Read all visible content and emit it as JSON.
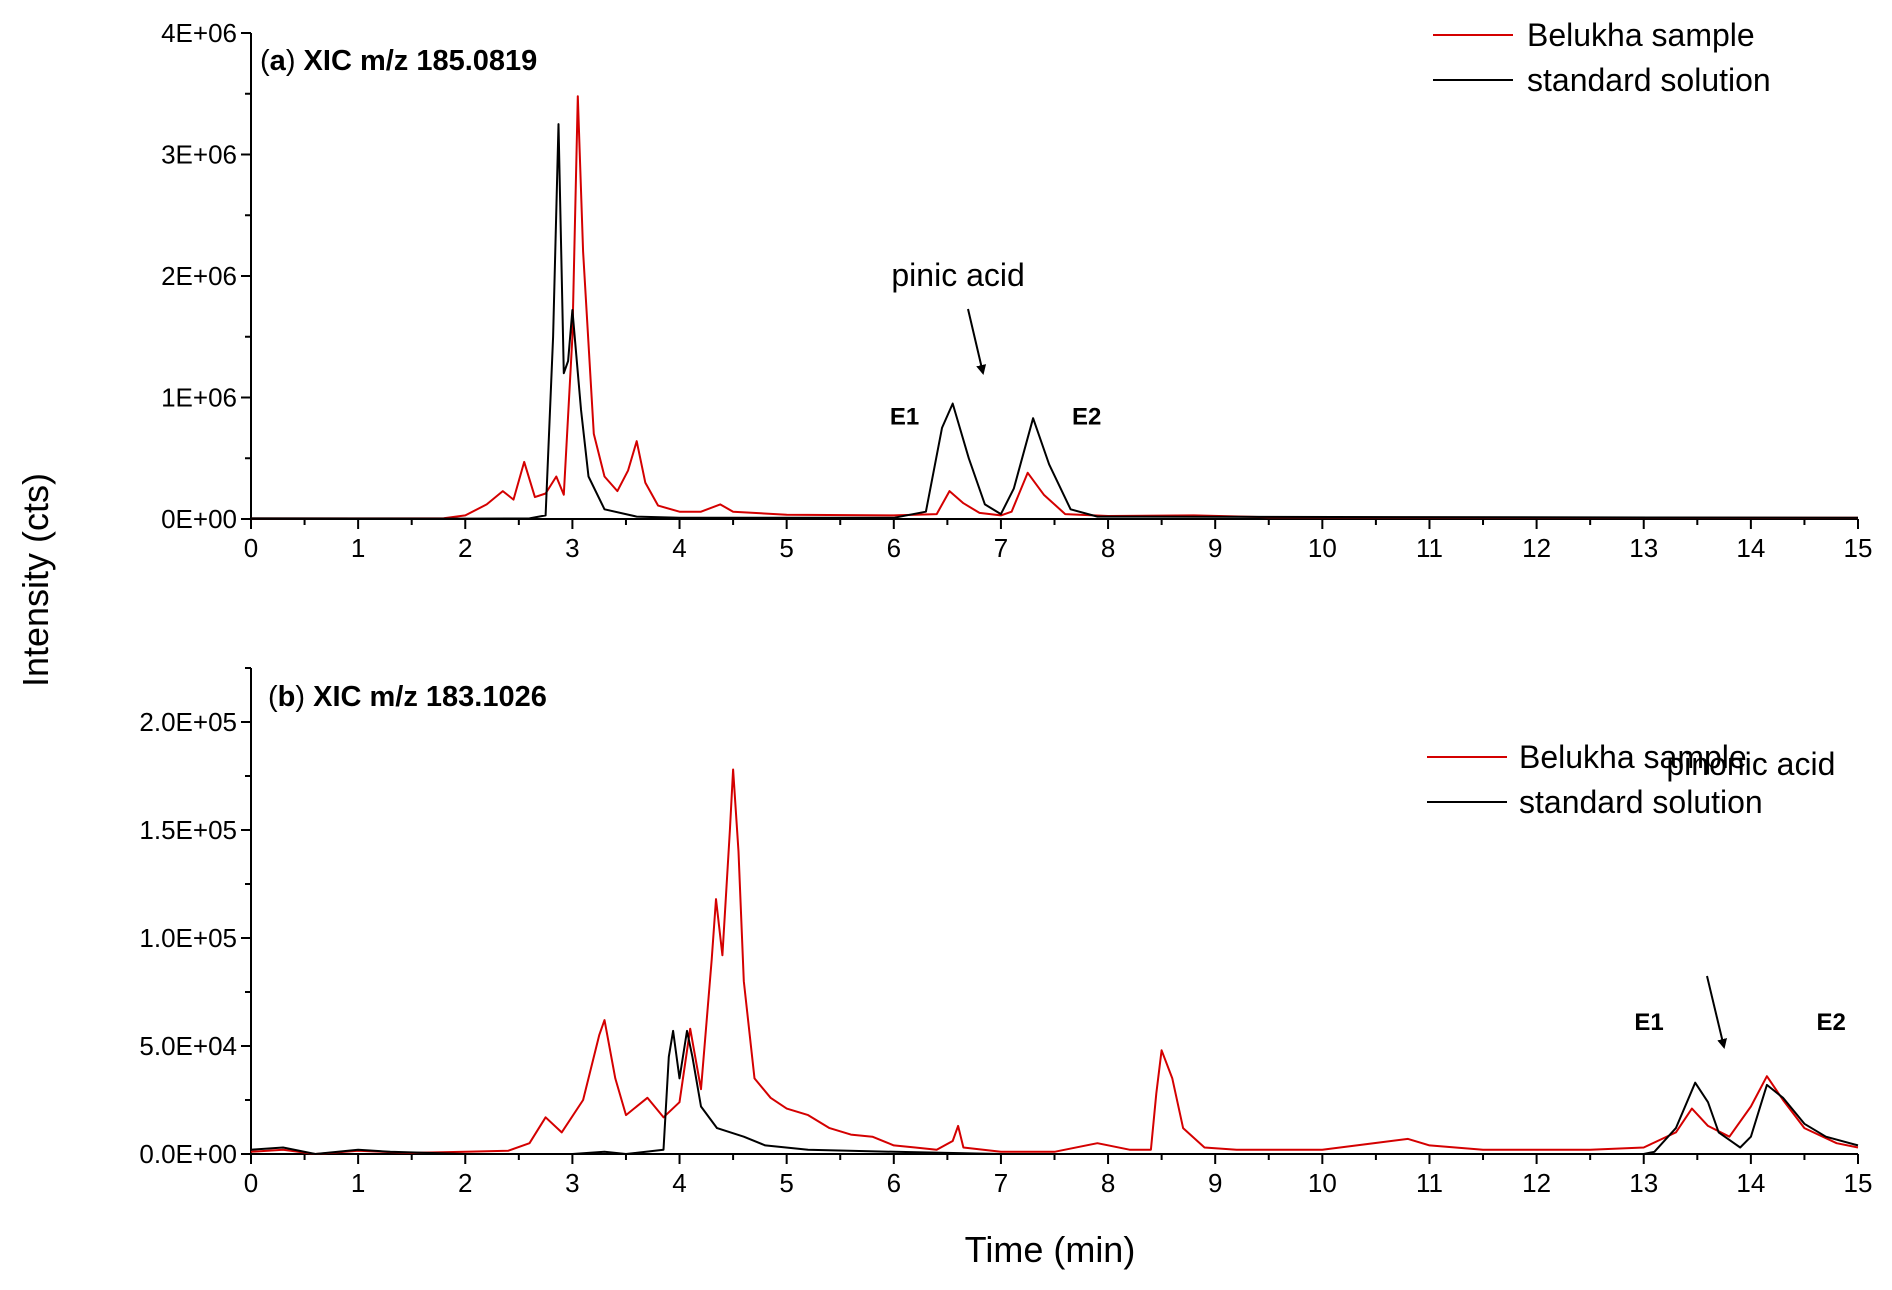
{
  "figure": {
    "ylabel": "Intensity (cts)",
    "xlabel": "Time (min)",
    "colors": {
      "belukha": "#d40000",
      "standard": "#000000"
    }
  },
  "chart_data": [
    {
      "type": "line",
      "panel": "a",
      "title_prefix": "(",
      "title_letter": "a",
      "title_rest": ") XIC m/z 185.0819",
      "xlim": [
        0,
        15
      ],
      "ylim": [
        0,
        4000000
      ],
      "x_ticks": [
        "0",
        "1",
        "2",
        "3",
        "4",
        "5",
        "6",
        "7",
        "8",
        "9",
        "10",
        "11",
        "12",
        "13",
        "14",
        "15"
      ],
      "y_ticks": [
        {
          "value": 0,
          "label": "0E+00"
        },
        {
          "value": 1000000,
          "label": "1E+06"
        },
        {
          "value": 2000000,
          "label": "2E+06"
        },
        {
          "value": 3000000,
          "label": "3E+06"
        },
        {
          "value": 4000000,
          "label": "4E+06"
        }
      ],
      "legend": [
        "Belukha sample",
        "standard solution"
      ],
      "legend_position": "top-right",
      "series": [
        {
          "name": "Belukha sample",
          "color": "#d40000",
          "points": [
            [
              0,
              5000
            ],
            [
              1,
              5000
            ],
            [
              1.8,
              6000
            ],
            [
              2.0,
              30000
            ],
            [
              2.2,
              120000
            ],
            [
              2.35,
              230000
            ],
            [
              2.45,
              160000
            ],
            [
              2.55,
              470000
            ],
            [
              2.65,
              180000
            ],
            [
              2.75,
              210000
            ],
            [
              2.85,
              350000
            ],
            [
              2.92,
              200000
            ],
            [
              3.0,
              1500000
            ],
            [
              3.05,
              3480000
            ],
            [
              3.1,
              2200000
            ],
            [
              3.2,
              700000
            ],
            [
              3.3,
              350000
            ],
            [
              3.42,
              230000
            ],
            [
              3.52,
              400000
            ],
            [
              3.6,
              640000
            ],
            [
              3.68,
              300000
            ],
            [
              3.8,
              110000
            ],
            [
              4.0,
              60000
            ],
            [
              4.2,
              60000
            ],
            [
              4.38,
              120000
            ],
            [
              4.5,
              60000
            ],
            [
              5.0,
              35000
            ],
            [
              6.0,
              30000
            ],
            [
              6.4,
              40000
            ],
            [
              6.52,
              230000
            ],
            [
              6.65,
              130000
            ],
            [
              6.8,
              50000
            ],
            [
              7.0,
              30000
            ],
            [
              7.1,
              60000
            ],
            [
              7.25,
              380000
            ],
            [
              7.4,
              200000
            ],
            [
              7.6,
              40000
            ],
            [
              8.0,
              25000
            ],
            [
              8.8,
              30000
            ],
            [
              9.5,
              15000
            ],
            [
              15,
              10000
            ]
          ]
        },
        {
          "name": "standard solution",
          "color": "#000000",
          "points": [
            [
              0,
              5000
            ],
            [
              1,
              4000
            ],
            [
              2,
              3000
            ],
            [
              2.6,
              5000
            ],
            [
              2.75,
              30000
            ],
            [
              2.82,
              1500000
            ],
            [
              2.87,
              3250000
            ],
            [
              2.92,
              1200000
            ],
            [
              2.96,
              1300000
            ],
            [
              3.0,
              1720000
            ],
            [
              3.08,
              900000
            ],
            [
              3.15,
              350000
            ],
            [
              3.3,
              80000
            ],
            [
              3.6,
              20000
            ],
            [
              4,
              10000
            ],
            [
              6,
              10000
            ],
            [
              6.3,
              60000
            ],
            [
              6.45,
              750000
            ],
            [
              6.55,
              950000
            ],
            [
              6.7,
              500000
            ],
            [
              6.85,
              120000
            ],
            [
              7.0,
              40000
            ],
            [
              7.12,
              250000
            ],
            [
              7.3,
              830000
            ],
            [
              7.45,
              450000
            ],
            [
              7.65,
              80000
            ],
            [
              7.9,
              20000
            ],
            [
              15,
              10000
            ]
          ]
        }
      ],
      "annotations": [
        {
          "text": "pinic acid",
          "x": 6.6,
          "y": 2000000
        },
        {
          "text": "E1",
          "x": 6.1,
          "y": 860000
        },
        {
          "text": "E2",
          "x": 7.8,
          "y": 860000
        }
      ]
    },
    {
      "type": "line",
      "panel": "b",
      "title_prefix": "(",
      "title_letter": "b",
      "title_rest": ") XIC m/z 183.1026",
      "xlim": [
        0,
        15
      ],
      "ylim": [
        0,
        225000
      ],
      "x_ticks": [
        "0",
        "1",
        "2",
        "3",
        "4",
        "5",
        "6",
        "7",
        "8",
        "9",
        "10",
        "11",
        "12",
        "13",
        "14",
        "15"
      ],
      "y_ticks": [
        {
          "value": 0,
          "label": "0.0E+00"
        },
        {
          "value": 50000,
          "label": "5.0E+04"
        },
        {
          "value": 100000,
          "label": "1.0E+05"
        },
        {
          "value": 150000,
          "label": "1.5E+05"
        },
        {
          "value": 200000,
          "label": "2.0E+05"
        }
      ],
      "legend": [
        "Belukha sample",
        "standard solution"
      ],
      "legend_position": "top-right",
      "series": [
        {
          "name": "Belukha sample",
          "color": "#d40000",
          "points": [
            [
              0,
              1000
            ],
            [
              0.3,
              2000
            ],
            [
              0.6,
              0
            ],
            [
              1,
              1500
            ],
            [
              1.5,
              500
            ],
            [
              2.0,
              1000
            ],
            [
              2.4,
              1500
            ],
            [
              2.6,
              5000
            ],
            [
              2.75,
              17000
            ],
            [
              2.9,
              10000
            ],
            [
              3.1,
              25000
            ],
            [
              3.25,
              55000
            ],
            [
              3.3,
              62000
            ],
            [
              3.4,
              35000
            ],
            [
              3.5,
              18000
            ],
            [
              3.7,
              26000
            ],
            [
              3.85,
              17000
            ],
            [
              4.0,
              24000
            ],
            [
              4.1,
              58000
            ],
            [
              4.2,
              30000
            ],
            [
              4.3,
              90000
            ],
            [
              4.34,
              118000
            ],
            [
              4.4,
              92000
            ],
            [
              4.47,
              150000
            ],
            [
              4.5,
              178000
            ],
            [
              4.55,
              140000
            ],
            [
              4.6,
              80000
            ],
            [
              4.7,
              35000
            ],
            [
              4.85,
              26000
            ],
            [
              5.0,
              21000
            ],
            [
              5.2,
              18000
            ],
            [
              5.4,
              12000
            ],
            [
              5.6,
              9000
            ],
            [
              5.8,
              8000
            ],
            [
              6.0,
              4000
            ],
            [
              6.2,
              3000
            ],
            [
              6.4,
              2000
            ],
            [
              6.55,
              6000
            ],
            [
              6.6,
              13000
            ],
            [
              6.65,
              3000
            ],
            [
              7.0,
              1000
            ],
            [
              7.5,
              1000
            ],
            [
              7.9,
              5000
            ],
            [
              8.2,
              2000
            ],
            [
              8.4,
              2000
            ],
            [
              8.45,
              28000
            ],
            [
              8.5,
              48000
            ],
            [
              8.6,
              35000
            ],
            [
              8.7,
              12000
            ],
            [
              8.9,
              3000
            ],
            [
              9.2,
              2000
            ],
            [
              10,
              2000
            ],
            [
              10.8,
              7000
            ],
            [
              11,
              4000
            ],
            [
              11.5,
              2000
            ],
            [
              12.5,
              2000
            ],
            [
              13.0,
              3000
            ],
            [
              13.3,
              10000
            ],
            [
              13.45,
              21000
            ],
            [
              13.6,
              13000
            ],
            [
              13.8,
              8000
            ],
            [
              14.0,
              22000
            ],
            [
              14.15,
              36000
            ],
            [
              14.3,
              25000
            ],
            [
              14.5,
              12000
            ],
            [
              14.8,
              5000
            ],
            [
              15,
              3000
            ]
          ]
        },
        {
          "name": "standard solution",
          "color": "#000000",
          "points": [
            [
              0,
              2000
            ],
            [
              0.3,
              3000
            ],
            [
              0.6,
              0
            ],
            [
              1.0,
              2000
            ],
            [
              1.3,
              1000
            ],
            [
              2,
              0
            ],
            [
              3,
              0
            ],
            [
              3.3,
              1000
            ],
            [
              3.5,
              0
            ],
            [
              3.85,
              2000
            ],
            [
              3.9,
              45000
            ],
            [
              3.94,
              57000
            ],
            [
              4.0,
              35000
            ],
            [
              4.07,
              57000
            ],
            [
              4.12,
              45000
            ],
            [
              4.2,
              22000
            ],
            [
              4.35,
              12000
            ],
            [
              4.6,
              8000
            ],
            [
              4.8,
              4000
            ],
            [
              5.2,
              2000
            ],
            [
              6,
              1000
            ],
            [
              7,
              0
            ],
            [
              8,
              0
            ],
            [
              9,
              0
            ],
            [
              10,
              0
            ],
            [
              11,
              0
            ],
            [
              12,
              0
            ],
            [
              13,
              0
            ],
            [
              13.1,
              1000
            ],
            [
              13.3,
              12000
            ],
            [
              13.48,
              33000
            ],
            [
              13.6,
              24000
            ],
            [
              13.7,
              10000
            ],
            [
              13.9,
              3000
            ],
            [
              14.0,
              8000
            ],
            [
              14.15,
              32000
            ],
            [
              14.3,
              26000
            ],
            [
              14.5,
              14000
            ],
            [
              14.7,
              8000
            ],
            [
              15,
              4000
            ]
          ]
        }
      ],
      "annotations": [
        {
          "text": "pinonic acid",
          "x": 14.0,
          "y": 180000
        },
        {
          "text": "E1",
          "x": 13.05,
          "y": 62000
        },
        {
          "text": "E2",
          "x": 14.75,
          "y": 62000
        }
      ]
    }
  ]
}
